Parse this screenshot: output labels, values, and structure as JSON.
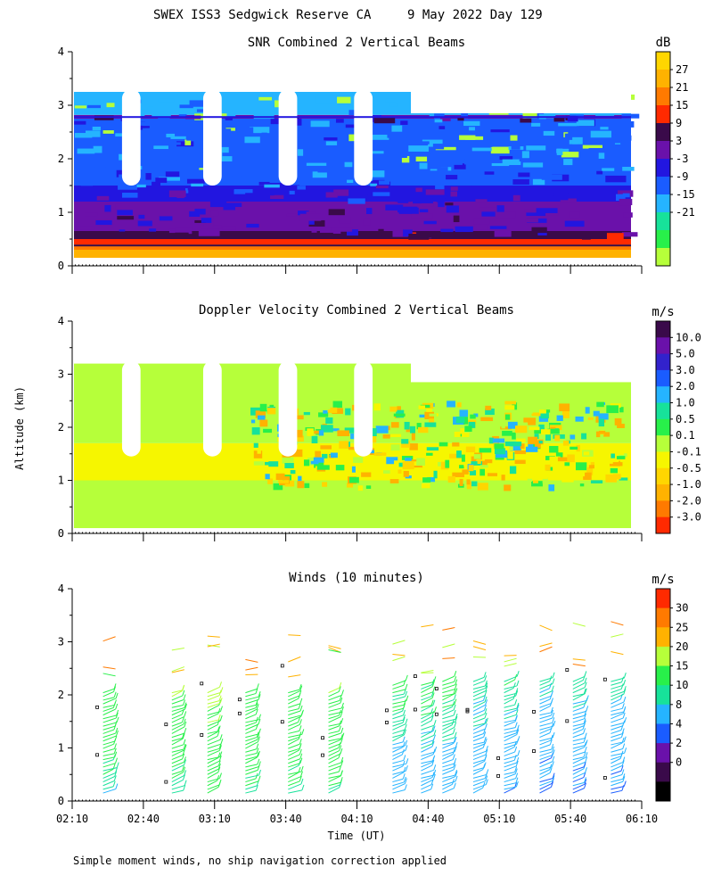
{
  "header": {
    "title": "SWEX ISS3 Sedgwick Reserve CA",
    "date": "9 May 2022 Day 129"
  },
  "footer": {
    "note": "Simple moment winds, no ship navigation correction applied"
  },
  "axes": {
    "ylabel": "Altitude (km)",
    "xlabel": "Time (UT)",
    "time_ticks": [
      "02:10",
      "02:40",
      "03:10",
      "03:40",
      "04:10",
      "04:40",
      "05:10",
      "05:40",
      "06:10"
    ],
    "alt_ticks": [
      "0",
      "1",
      "2",
      "3",
      "4"
    ]
  },
  "chart_data": [
    {
      "type": "heatmap",
      "title": "SNR Combined 2 Vertical Beams",
      "unit": "dB",
      "ylim": [
        0,
        4
      ],
      "xlim": [
        "02:10",
        "06:10"
      ],
      "colorbar": {
        "labels": [
          "27",
          "21",
          "15",
          "9",
          "3",
          "-3",
          "-9",
          "-15",
          "-21"
        ],
        "colors": [
          "#ffd600",
          "#ffb200",
          "#ff7a00",
          "#ff2a00",
          "#3a0a4a",
          "#6a11aa",
          "#2216e0",
          "#1a5cff",
          "#25b4ff",
          "#17e29a",
          "#28f04a",
          "#b6ff3a"
        ]
      },
      "gaps_hours": [
        [
          0.35,
          0.48
        ],
        [
          0.92,
          1.05
        ],
        [
          1.45,
          1.58
        ],
        [
          1.98,
          2.11
        ]
      ],
      "profile": [
        {
          "alt": [
            0.0,
            0.15
          ],
          "snr": -30
        },
        {
          "alt": [
            0.15,
            0.3
          ],
          "snr": 24
        },
        {
          "alt": [
            0.3,
            0.4
          ],
          "snr": 16
        },
        {
          "alt": [
            0.4,
            0.5
          ],
          "snr": 12
        },
        {
          "alt": [
            0.5,
            0.65
          ],
          "snr": 6
        },
        {
          "alt": [
            0.65,
            1.2
          ],
          "snr": -2
        },
        {
          "alt": [
            1.2,
            1.5
          ],
          "snr": -6
        },
        {
          "alt": [
            1.5,
            1.8
          ],
          "snr": -11
        },
        {
          "alt": [
            1.8,
            2.6
          ],
          "snr": -15
        },
        {
          "alt": [
            2.6,
            2.75
          ],
          "snr": -12
        },
        {
          "alt": [
            2.75,
            2.82
          ],
          "snr": -1
        },
        {
          "alt": [
            2.82,
            3.25
          ],
          "snr": -18
        }
      ]
    },
    {
      "type": "heatmap",
      "title": "Doppler Velocity Combined 2 Vertical Beams",
      "unit": "m/s",
      "ylim": [
        0,
        4
      ],
      "xlim": [
        "02:10",
        "06:10"
      ],
      "colorbar": {
        "labels": [
          "10.0",
          "5.0",
          "3.0",
          "2.0",
          "1.0",
          "0.5",
          "0.1",
          "-0.1",
          "-0.5",
          "-1.0",
          "-2.0",
          "-3.0"
        ],
        "colors": [
          "#3a0a4a",
          "#6a11aa",
          "#3222cc",
          "#1a5cff",
          "#25b4ff",
          "#17e29a",
          "#28f04a",
          "#b6ff3a",
          "#f6f600",
          "#ffd600",
          "#ffb200",
          "#ff7a00",
          "#ff2a00"
        ]
      },
      "gaps_hours": [
        [
          0.35,
          0.48
        ],
        [
          0.92,
          1.05
        ],
        [
          1.45,
          1.58
        ],
        [
          1.98,
          2.11
        ]
      ],
      "profile": [
        {
          "alt": [
            0.1,
            1.0
          ],
          "vel": -0.05
        },
        {
          "alt": [
            1.0,
            1.7
          ],
          "vel": -0.3
        },
        {
          "alt": [
            1.7,
            3.2
          ],
          "vel": 0.0
        }
      ]
    },
    {
      "type": "wind_barbs",
      "title": "Winds (10 minutes)",
      "unit": "m/s",
      "ylim": [
        0,
        4
      ],
      "xlim": [
        "02:10",
        "06:10"
      ],
      "colorbar": {
        "labels": [
          "30",
          "25",
          "20",
          "15",
          "10",
          "8",
          "4",
          "2",
          "0"
        ],
        "colors": [
          "#ff2a00",
          "#ff7a00",
          "#ffb200",
          "#b6ff3a",
          "#28f04a",
          "#17e29a",
          "#25b4ff",
          "#1a5cff",
          "#6a11aa",
          "#3a0a4a",
          "#000000"
        ]
      },
      "profiles": [
        {
          "time": "02:23",
          "top_km": 2.1,
          "speed": 8
        },
        {
          "time": "02:52",
          "top_km": 2.1,
          "speed": 9
        },
        {
          "time": "03:07",
          "top_km": 2.1,
          "speed": 10
        },
        {
          "time": "03:23",
          "top_km": 2.1,
          "speed": 9
        },
        {
          "time": "03:41",
          "top_km": 2.1,
          "speed": 9
        },
        {
          "time": "03:58",
          "top_km": 2.1,
          "speed": 9
        },
        {
          "time": "04:25",
          "top_km": 2.2,
          "speed": 5
        },
        {
          "time": "04:37",
          "top_km": 2.2,
          "speed": 5
        },
        {
          "time": "04:46",
          "top_km": 2.3,
          "speed": 5
        },
        {
          "time": "04:59",
          "top_km": 2.3,
          "speed": 4
        },
        {
          "time": "05:12",
          "top_km": 2.3,
          "speed": 4
        },
        {
          "time": "05:27",
          "top_km": 2.3,
          "speed": 3
        },
        {
          "time": "05:41",
          "top_km": 2.3,
          "speed": 3
        },
        {
          "time": "05:57",
          "top_km": 2.3,
          "speed": 3
        }
      ]
    }
  ]
}
